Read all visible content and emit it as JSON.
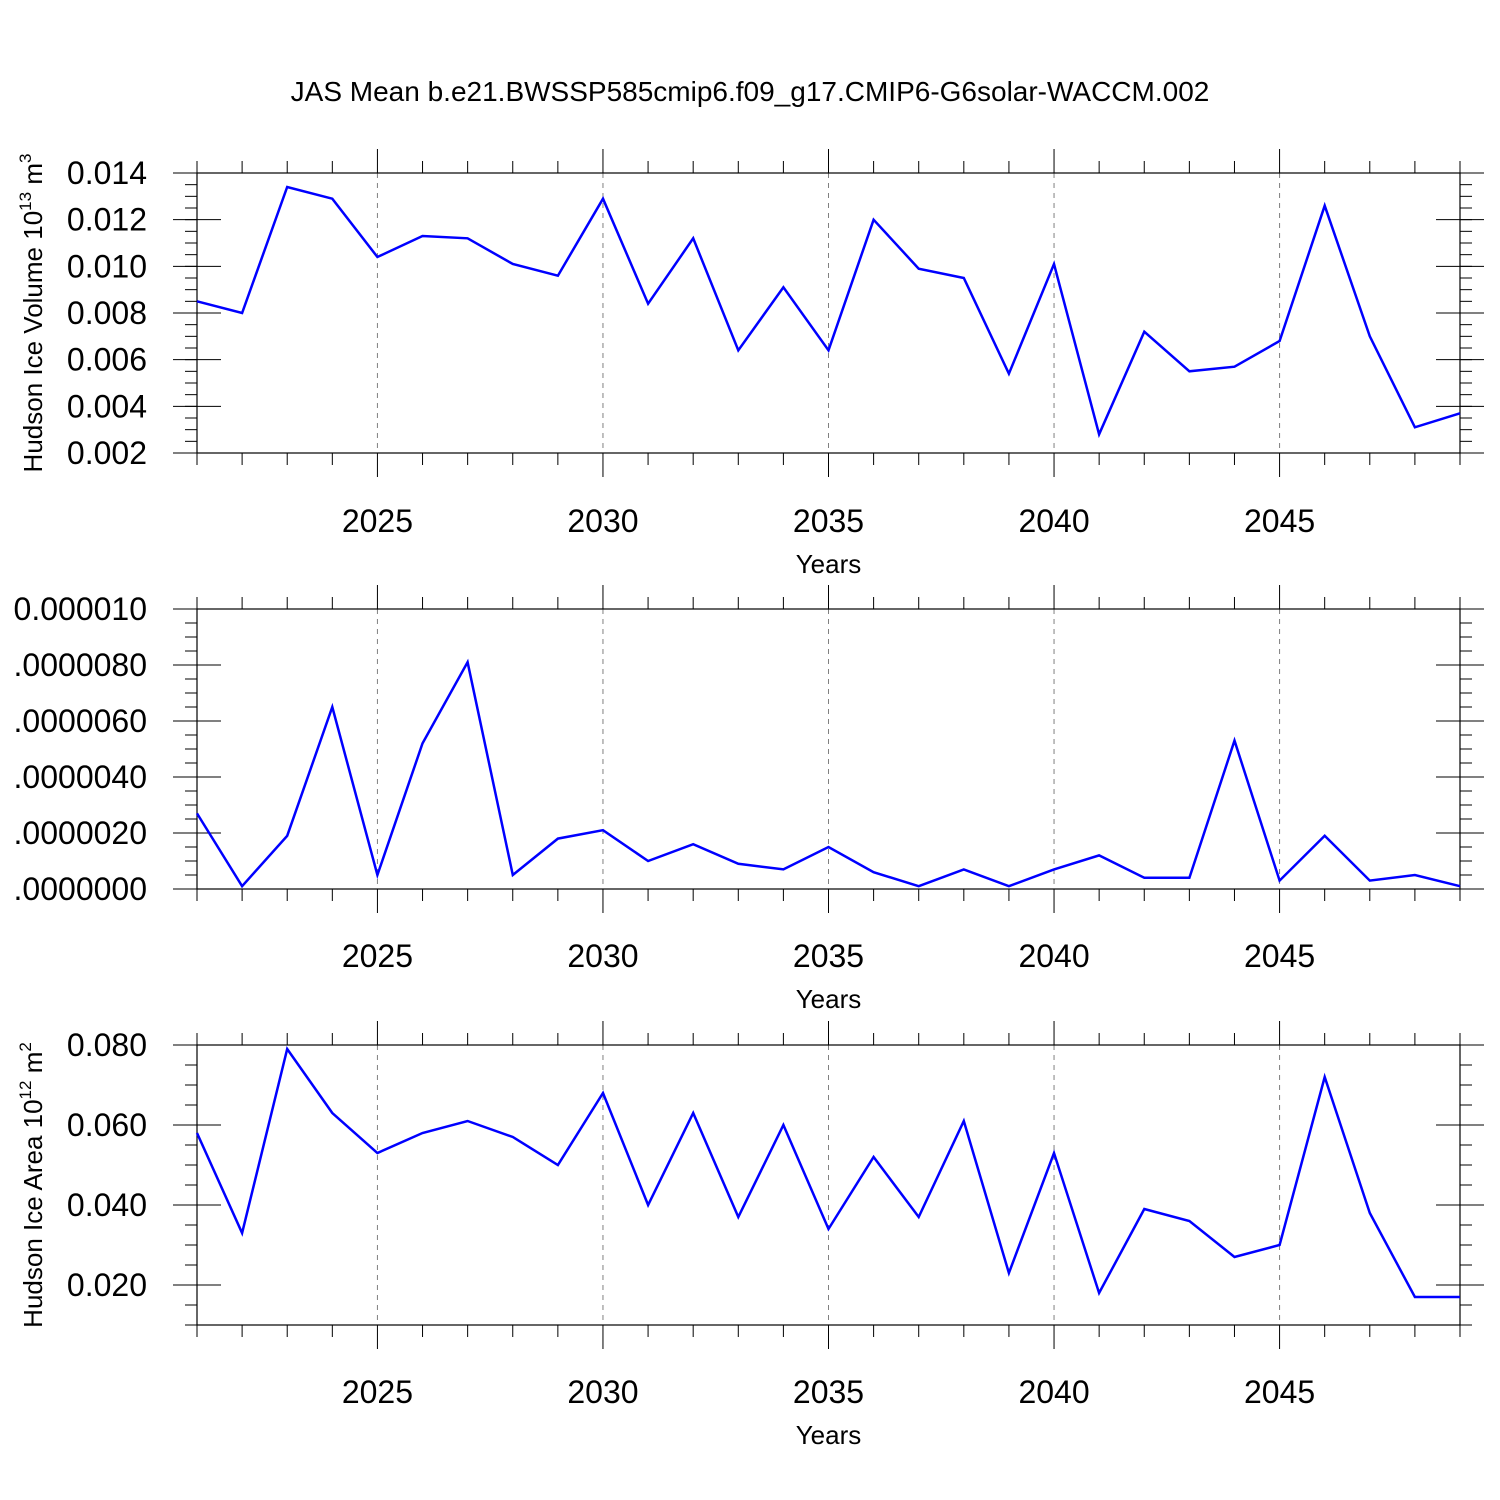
{
  "title": "JAS Mean b.e21.BWSSP585cmip6.f09_g17.CMIP6-G6solar-WACCM.002",
  "chart_data": [
    {
      "type": "line",
      "ylabel": "Hudson Ice Volume 10",
      "ylabel_exp": "13",
      "ylabel_unit": " m",
      "ylabel_unit_exp": "3",
      "xlabel": "Years",
      "xlim": [
        2021,
        2049
      ],
      "ylim": [
        0.002,
        0.014
      ],
      "x_ticks": [
        2025,
        2030,
        2035,
        2040,
        2045
      ],
      "x_tick_labels": [
        "2025",
        "2030",
        "2035",
        "2040",
        "2045"
      ],
      "y_ticks": [
        0.002,
        0.004,
        0.006,
        0.008,
        0.01,
        0.012,
        0.014
      ],
      "y_tick_labels": [
        "0.002",
        "0.004",
        "0.006",
        "0.008",
        "0.010",
        "0.012",
        "0.014"
      ],
      "y_minor_step": 0.0005,
      "grid": "dashed vertical lines at labeled years",
      "color": "#0000ff",
      "x": [
        2021,
        2022,
        2023,
        2024,
        2025,
        2026,
        2027,
        2028,
        2029,
        2030,
        2031,
        2032,
        2033,
        2034,
        2035,
        2036,
        2037,
        2038,
        2039,
        2040,
        2041,
        2042,
        2043,
        2044,
        2045,
        2046,
        2047,
        2048,
        2049
      ],
      "values": [
        0.0085,
        0.008,
        0.0134,
        0.0129,
        0.0104,
        0.0113,
        0.0112,
        0.0101,
        0.0096,
        0.0129,
        0.0084,
        0.0112,
        0.0064,
        0.0091,
        0.0064,
        0.012,
        0.0099,
        0.0095,
        0.0054,
        0.0101,
        0.0028,
        0.0072,
        0.0055,
        0.0057,
        0.0068,
        0.0126,
        0.007,
        0.0031,
        0.0037
      ]
    },
    {
      "type": "line",
      "ylabel": "",
      "xlabel": "Years",
      "xlim": [
        2021,
        2049
      ],
      "ylim": [
        0.0,
        1e-05
      ],
      "x_ticks": [
        2025,
        2030,
        2035,
        2040,
        2045
      ],
      "x_tick_labels": [
        "2025",
        "2030",
        "2035",
        "2040",
        "2045"
      ],
      "y_ticks": [
        0.0,
        2e-06,
        4e-06,
        6e-06,
        8e-06,
        1e-05
      ],
      "y_tick_labels": [
        ".0000000",
        ".0000020",
        ".0000040",
        ".0000060",
        ".0000080",
        "0.000010"
      ],
      "y_minor_step": 5e-07,
      "grid": "dashed vertical lines at labeled years",
      "color": "#0000ff",
      "x": [
        2021,
        2022,
        2023,
        2024,
        2025,
        2026,
        2027,
        2028,
        2029,
        2030,
        2031,
        2032,
        2033,
        2034,
        2035,
        2036,
        2037,
        2038,
        2039,
        2040,
        2041,
        2042,
        2043,
        2044,
        2045,
        2046,
        2047,
        2048,
        2049
      ],
      "values": [
        2.7e-06,
        1e-07,
        1.9e-06,
        6.5e-06,
        5e-07,
        5.2e-06,
        8.1e-06,
        5e-07,
        1.8e-06,
        2.1e-06,
        1e-06,
        1.6e-06,
        9e-07,
        7e-07,
        1.5e-06,
        6e-07,
        1e-07,
        7e-07,
        1e-07,
        7e-07,
        1.2e-06,
        4e-07,
        4e-07,
        5.3e-06,
        3e-07,
        1.9e-06,
        3e-07,
        5e-07,
        1e-07
      ]
    },
    {
      "type": "line",
      "ylabel": "Hudson Ice Area 10",
      "ylabel_exp": "12",
      "ylabel_unit": " m",
      "ylabel_unit_exp": "2",
      "xlabel": "Years",
      "xlim": [
        2021,
        2049
      ],
      "ylim": [
        0.01,
        0.08
      ],
      "x_ticks": [
        2025,
        2030,
        2035,
        2040,
        2045
      ],
      "x_tick_labels": [
        "2025",
        "2030",
        "2035",
        "2040",
        "2045"
      ],
      "y_ticks": [
        0.02,
        0.04,
        0.06,
        0.08
      ],
      "y_tick_labels": [
        "0.020",
        "0.040",
        "0.060",
        "0.080"
      ],
      "y_minor_step": 0.005,
      "grid": "dashed vertical lines at labeled years",
      "color": "#0000ff",
      "x": [
        2021,
        2022,
        2023,
        2024,
        2025,
        2026,
        2027,
        2028,
        2029,
        2030,
        2031,
        2032,
        2033,
        2034,
        2035,
        2036,
        2037,
        2038,
        2039,
        2040,
        2041,
        2042,
        2043,
        2044,
        2045,
        2046,
        2047,
        2048,
        2049
      ],
      "values": [
        0.058,
        0.033,
        0.079,
        0.063,
        0.053,
        0.058,
        0.061,
        0.057,
        0.05,
        0.068,
        0.04,
        0.063,
        0.037,
        0.06,
        0.034,
        0.052,
        0.037,
        0.061,
        0.023,
        0.053,
        0.018,
        0.039,
        0.036,
        0.027,
        0.03,
        0.072,
        0.038,
        0.017,
        0.017
      ]
    }
  ]
}
